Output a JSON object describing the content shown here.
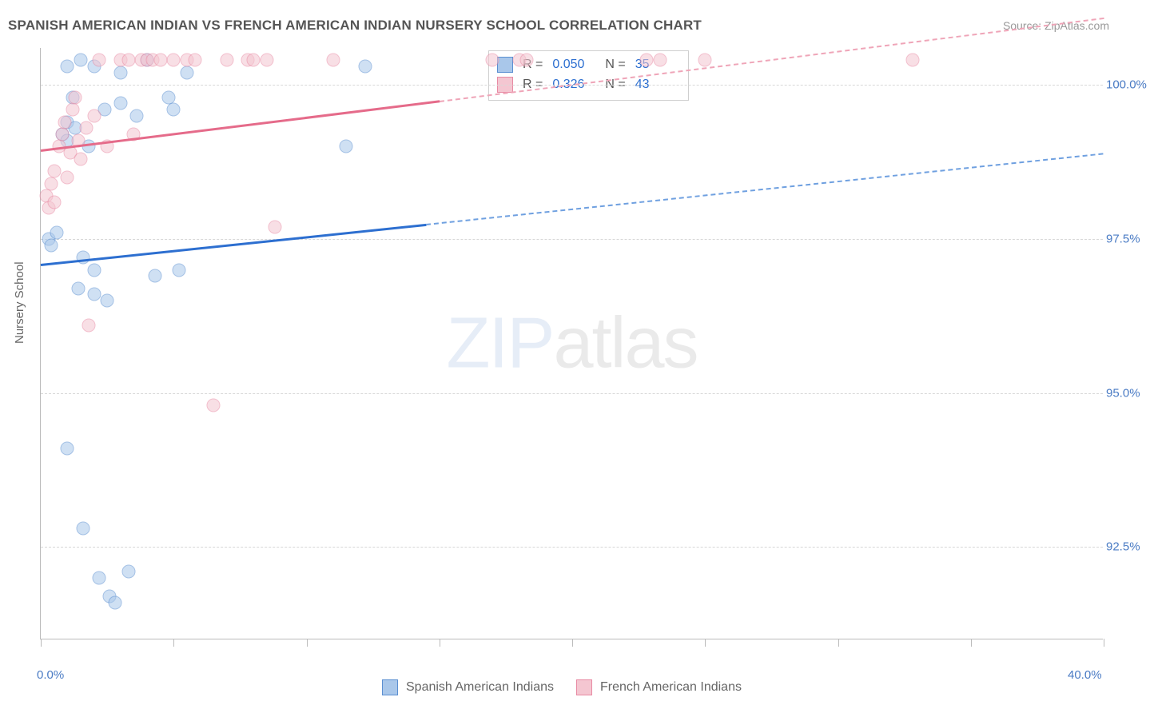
{
  "title": "SPANISH AMERICAN INDIAN VS FRENCH AMERICAN INDIAN NURSERY SCHOOL CORRELATION CHART",
  "source": "Source: ZipAtlas.com",
  "watermark": {
    "zip": "ZIP",
    "atlas": "atlas"
  },
  "y_axis": {
    "title": "Nursery School"
  },
  "chart": {
    "type": "scatter",
    "xlim": [
      0,
      40
    ],
    "ylim": [
      91,
      100.6
    ],
    "x_tick_positions": [
      0,
      5,
      10,
      15,
      20,
      25,
      30,
      35,
      40
    ],
    "x_tick_labels": {
      "0": "0.0%",
      "40": "40.0%"
    },
    "y_ticks": [
      92.5,
      95.0,
      97.5,
      100.0
    ],
    "y_tick_labels": [
      "92.5%",
      "95.0%",
      "97.5%",
      "100.0%"
    ],
    "grid_color": "#d8d8d8",
    "axis_color": "#bbbbbb",
    "background_color": "#ffffff",
    "marker_radius": 8.5,
    "marker_opacity": 0.55,
    "series": [
      {
        "name": "Spanish American Indians",
        "color_fill": "#a9c7ea",
        "color_stroke": "#5b8fd1",
        "r_label": "R =",
        "r_value": "0.050",
        "n_label": "N =",
        "n_value": "35",
        "trend": {
          "solid_color": "#2d6fd0",
          "dashed_color": "#6fa0e0",
          "solid_x0": 0,
          "solid_y0": 97.1,
          "solid_x1": 14.5,
          "solid_y1": 97.75,
          "dashed_x0": 14.5,
          "dashed_y0": 97.75,
          "dashed_x1": 40,
          "dashed_y1": 98.9
        },
        "points": [
          [
            0.3,
            97.5
          ],
          [
            0.4,
            97.4
          ],
          [
            0.6,
            97.6
          ],
          [
            0.8,
            99.2
          ],
          [
            1.0,
            99.4
          ],
          [
            1.0,
            99.1
          ],
          [
            1.2,
            99.8
          ],
          [
            1.3,
            99.3
          ],
          [
            1.4,
            96.7
          ],
          [
            1.6,
            97.2
          ],
          [
            1.8,
            99.0
          ],
          [
            2.0,
            96.6
          ],
          [
            2.0,
            97.0
          ],
          [
            2.2,
            92.0
          ],
          [
            2.4,
            99.6
          ],
          [
            2.5,
            96.5
          ],
          [
            2.6,
            91.7
          ],
          [
            2.8,
            91.6
          ],
          [
            1.0,
            94.1
          ],
          [
            1.6,
            92.8
          ],
          [
            3.0,
            99.7
          ],
          [
            3.3,
            92.1
          ],
          [
            3.6,
            99.5
          ],
          [
            4.3,
            96.9
          ],
          [
            4.8,
            99.8
          ],
          [
            5.0,
            99.6
          ],
          [
            5.2,
            97.0
          ],
          [
            5.5,
            100.2
          ],
          [
            1.0,
            100.3
          ],
          [
            1.5,
            100.4
          ],
          [
            2.0,
            100.3
          ],
          [
            3.0,
            100.2
          ],
          [
            12.2,
            100.3
          ],
          [
            11.5,
            99.0
          ],
          [
            4.0,
            100.4
          ]
        ]
      },
      {
        "name": "French American Indians",
        "color_fill": "#f4c6d1",
        "color_stroke": "#e88aa3",
        "r_label": "R =",
        "r_value": "0.326",
        "n_label": "N =",
        "n_value": "43",
        "trend": {
          "solid_color": "#e56b8a",
          "dashed_color": "#efa5b8",
          "solid_x0": 0,
          "solid_y0": 98.95,
          "solid_x1": 15.0,
          "solid_y1": 99.75,
          "dashed_x0": 15.0,
          "dashed_y0": 99.75,
          "dashed_x1": 40,
          "dashed_y1": 101.1
        },
        "points": [
          [
            0.2,
            98.2
          ],
          [
            0.3,
            98.0
          ],
          [
            0.4,
            98.4
          ],
          [
            0.5,
            98.6
          ],
          [
            0.5,
            98.1
          ],
          [
            0.7,
            99.0
          ],
          [
            0.8,
            99.2
          ],
          [
            0.9,
            99.4
          ],
          [
            1.0,
            98.5
          ],
          [
            1.1,
            98.9
          ],
          [
            1.2,
            99.6
          ],
          [
            1.4,
            99.1
          ],
          [
            1.5,
            98.8
          ],
          [
            1.7,
            99.3
          ],
          [
            1.8,
            96.1
          ],
          [
            2.0,
            99.5
          ],
          [
            2.2,
            100.4
          ],
          [
            2.5,
            99.0
          ],
          [
            3.0,
            100.4
          ],
          [
            3.3,
            100.4
          ],
          [
            3.5,
            99.2
          ],
          [
            3.8,
            100.4
          ],
          [
            4.0,
            100.4
          ],
          [
            4.2,
            100.4
          ],
          [
            4.5,
            100.4
          ],
          [
            5.0,
            100.4
          ],
          [
            5.5,
            100.4
          ],
          [
            5.8,
            100.4
          ],
          [
            7.0,
            100.4
          ],
          [
            7.8,
            100.4
          ],
          [
            8.0,
            100.4
          ],
          [
            8.5,
            100.4
          ],
          [
            6.5,
            94.8
          ],
          [
            8.8,
            97.7
          ],
          [
            11.0,
            100.4
          ],
          [
            17.0,
            100.4
          ],
          [
            18.0,
            100.4
          ],
          [
            18.3,
            100.4
          ],
          [
            22.8,
            100.4
          ],
          [
            23.3,
            100.4
          ],
          [
            25.0,
            100.4
          ],
          [
            32.8,
            100.4
          ],
          [
            1.3,
            99.8
          ]
        ]
      }
    ]
  },
  "legend": {
    "series1_label": "Spanish American Indians",
    "series2_label": "French American Indians"
  }
}
